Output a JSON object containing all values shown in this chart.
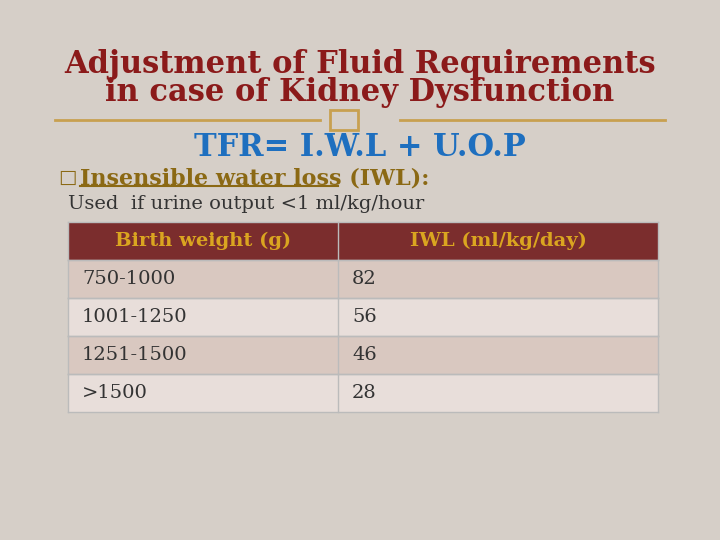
{
  "title_line1": "Adjustment of Fluid Requirements",
  "title_line2": "in case of Kidney Dysfunction",
  "title_color": "#8B1A1A",
  "tfr_text": "TFR= I.W.L + U.O.P",
  "tfr_color": "#1E6FBF",
  "bullet_label": "□",
  "bullet_text": "Insensible water loss (IWL):",
  "bullet_color": "#8B6914",
  "used_text": "Used  if urine output <1 ml/kg/hour",
  "used_text_color": "#333333",
  "table_header": [
    "Birth weight (g)",
    "IWL (ml/kg/day)"
  ],
  "table_header_text_color": "#DAA520",
  "table_header_bg": "#7B2D2D",
  "table_rows": [
    [
      "750-1000",
      "82"
    ],
    [
      "1001-1250",
      "56"
    ],
    [
      "1251-1500",
      "46"
    ],
    [
      ">1500",
      "28"
    ]
  ],
  "table_row_text_color": "#333333",
  "table_row_bg_even": "#D9C8C0",
  "table_row_bg_odd": "#E8DEDA",
  "table_border_color": "#BBBBBB",
  "bg_color": "#D6CFC8",
  "divider_color": "#C8A050",
  "divider_symbol_color": "#C8A050",
  "title_fontsize": 22,
  "tfr_fontsize": 22,
  "bullet_fontsize": 16,
  "used_fontsize": 14,
  "table_header_fontsize": 14,
  "table_row_fontsize": 14
}
